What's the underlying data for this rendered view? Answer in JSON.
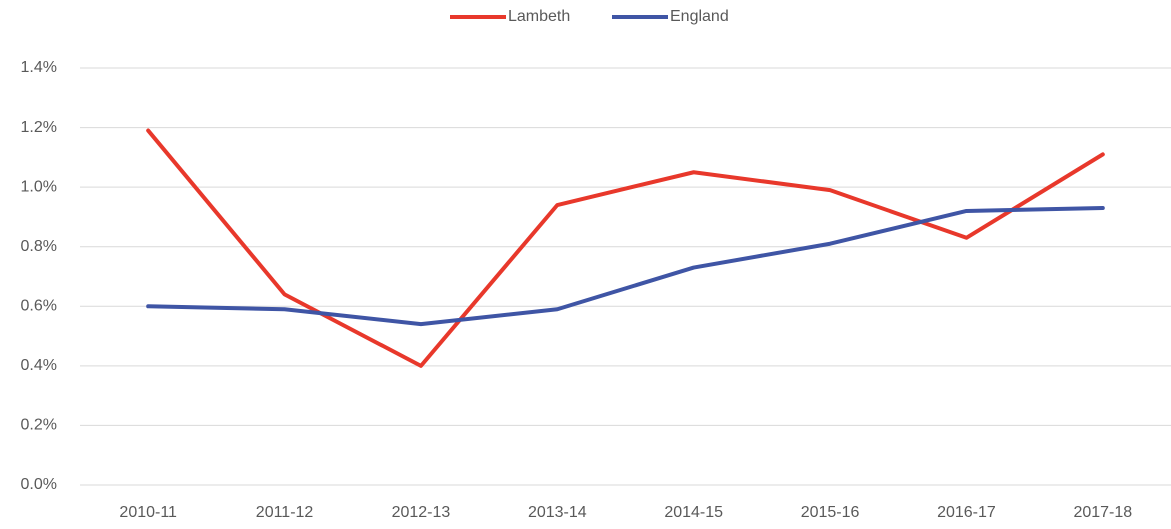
{
  "chart_data": {
    "type": "line",
    "categories": [
      "2010-11",
      "2011-12",
      "2012-13",
      "2013-14",
      "2014-15",
      "2015-16",
      "2016-17",
      "2017-18"
    ],
    "series": [
      {
        "name": "Lambeth",
        "color": "#e8382b",
        "values": [
          1.19,
          0.64,
          0.4,
          0.94,
          1.05,
          0.99,
          0.83,
          1.11
        ]
      },
      {
        "name": "England",
        "color": "#3f55a5",
        "values": [
          0.6,
          0.59,
          0.54,
          0.59,
          0.73,
          0.81,
          0.92,
          0.93
        ]
      }
    ],
    "ylim": [
      0,
      1.4
    ],
    "yticks": [
      {
        "value": 0,
        "label": "0.0%"
      },
      {
        "value": 0.2,
        "label": "0.2%"
      },
      {
        "value": 0.4,
        "label": "0.4%"
      },
      {
        "value": 0.6,
        "label": "0.6%"
      },
      {
        "value": 0.8,
        "label": "0.8%"
      },
      {
        "value": 1.0,
        "label": "1.0%"
      },
      {
        "value": 1.2,
        "label": "1.2%"
      },
      {
        "value": 1.4,
        "label": "1.4%"
      }
    ],
    "grid": true,
    "legend": "top"
  }
}
